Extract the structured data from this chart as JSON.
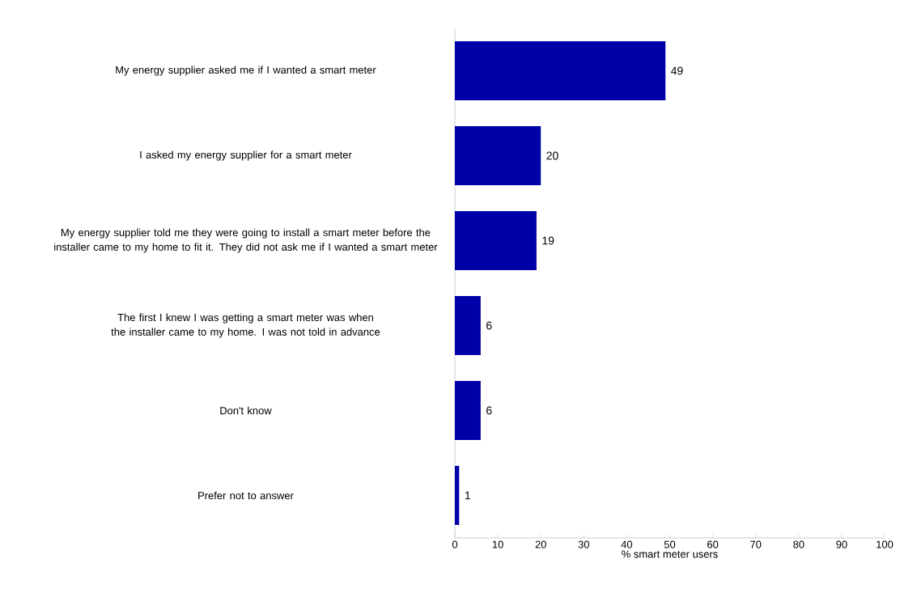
{
  "chart_data": {
    "type": "bar",
    "orientation": "horizontal",
    "xlabel": "% smart meter users",
    "categories": [
      "My energy supplier asked me if I wanted a smart meter",
      "I asked my energy supplier for a smart meter",
      "My energy supplier told me they were going to install a smart meter before the installer came to my home to fit it. They did not ask me if I wanted a smart meter",
      "The first I knew I was getting a smart meter was when the installer came to my home. I was not told in advance",
      "Don't know",
      "Prefer not to answer"
    ],
    "values": [
      49,
      20,
      19,
      6,
      6,
      1
    ],
    "color": "#0000a8",
    "data_labels": true,
    "xlim": [
      0,
      100
    ],
    "xticks": [
      0,
      10,
      20,
      30,
      40,
      50,
      60,
      70,
      80,
      90,
      100
    ],
    "grid": false
  }
}
